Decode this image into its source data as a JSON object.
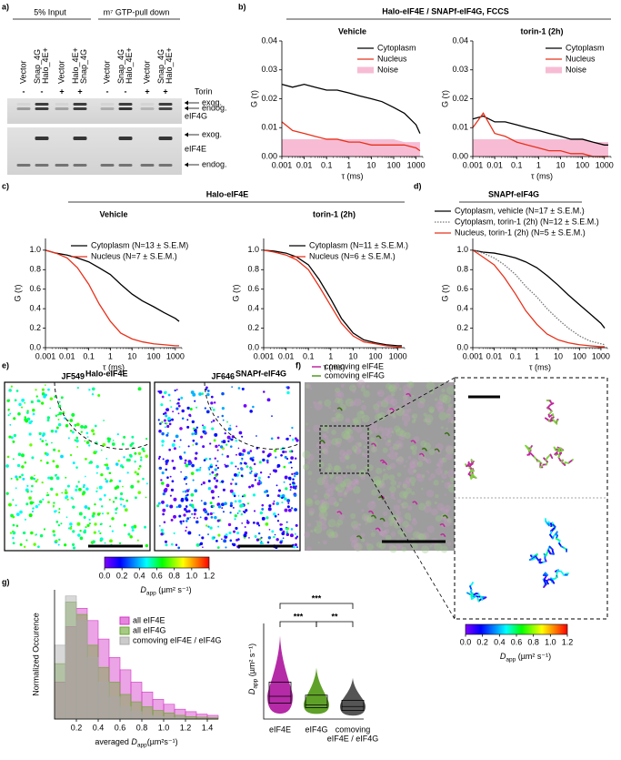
{
  "panel_labels": [
    "a)",
    "b)",
    "c)",
    "d)",
    "e)",
    "f)",
    "g)"
  ],
  "western_blot": {
    "groups": [
      "5% Input",
      "m⁷ GTP-pull down"
    ],
    "lanes": [
      [
        "Vector"
      ],
      [
        "Snap_4G",
        "Halo_4E+"
      ],
      [
        "Vector"
      ],
      [
        "Halo_4E+",
        "Snap_4G"
      ],
      [
        "Vector"
      ],
      [
        "Snap_4G",
        "Halo_4E+"
      ],
      [
        "Vector"
      ],
      [
        "Snap_4G",
        "Halo_4E+"
      ]
    ],
    "treatment_label": "Torin",
    "treatment": [
      "-",
      "-",
      "+",
      "+",
      "-",
      "-",
      "+",
      "+"
    ],
    "bands": [
      "exog.",
      "endog.",
      "eIF4G",
      "exog.",
      "eIF4E",
      "endog."
    ]
  },
  "panel_b": {
    "title": "Halo-eIF4E / SNAPf-eIF4G, FCCS",
    "charts": [
      {
        "type": "line",
        "title": "Vehicle",
        "log_x": true,
        "legend": "upper right",
        "x": [
          0.001,
          0.003,
          0.01,
          0.03,
          0.1,
          0.3,
          1,
          3,
          10,
          30,
          100,
          300,
          1000,
          1500
        ],
        "xlim": [
          0.001,
          2000
        ],
        "xticks": [
          0.001,
          0.01,
          0.1,
          1,
          10,
          100,
          1000
        ],
        "ylim": [
          0,
          0.04
        ],
        "yticks": [
          {
            "value": 0,
            "label": "0.00"
          },
          0.01,
          0.02,
          0.03,
          0.04
        ],
        "xlabel": "τ (ms)",
        "ylabel": "G (τ)",
        "series": [
          {
            "name": "Cytoplasm",
            "color": "#000000",
            "style": "line",
            "values": [
              0.025,
              0.024,
              0.025,
              0.024,
              0.023,
              0.023,
              0.022,
              0.021,
              0.02,
              0.019,
              0.017,
              0.015,
              0.011,
              0.008
            ]
          },
          {
            "name": "Nucleus",
            "color": "#e8311a",
            "style": "line",
            "values": [
              0.012,
              0.009,
              0.008,
              0.007,
              0.006,
              0.006,
              0.005,
              0.005,
              0.004,
              0.004,
              0.004,
              0.004,
              0.003,
              0.002
            ]
          },
          {
            "name": "Noise",
            "color": "#f4a6c6",
            "style": "area",
            "values": [
              0.006,
              0.006,
              0.006,
              0.006,
              0.006,
              0.006,
              0.006,
              0.006,
              0.006,
              0.006,
              0.006,
              0.005,
              0.005,
              0.005
            ]
          }
        ]
      },
      {
        "type": "line",
        "title": "torin-1 (2h)",
        "log_x": true,
        "legend": "upper right",
        "x": [
          0.001,
          0.003,
          0.01,
          0.03,
          0.1,
          0.3,
          1,
          3,
          10,
          30,
          100,
          300,
          1000,
          1500
        ],
        "xlim": [
          0.001,
          2000
        ],
        "xticks": [
          0.001,
          0.01,
          0.1,
          1,
          10,
          100,
          1000
        ],
        "ylim": [
          0,
          0.04
        ],
        "yticks": [
          {
            "value": 0,
            "label": "0.00"
          },
          0.01,
          0.02,
          0.03,
          0.04
        ],
        "xlabel": "τ (ms)",
        "ylabel": "G (τ)",
        "series": [
          {
            "name": "Cytoplasm",
            "color": "#000000",
            "style": "line",
            "values": [
              0.013,
              0.014,
              0.012,
              0.012,
              0.011,
              0.01,
              0.009,
              0.008,
              0.007,
              0.006,
              0.006,
              0.005,
              0.004,
              0.004
            ]
          },
          {
            "name": "Nucleus",
            "color": "#e8311a",
            "style": "line",
            "values": [
              0.01,
              0.015,
              0.008,
              0.007,
              0.005,
              0.004,
              0.003,
              0.002,
              0.002,
              0.001,
              0.001,
              0,
              0,
              0
            ]
          },
          {
            "name": "Noise",
            "color": "#f4a6c6",
            "style": "area",
            "values": [
              0.006,
              0.006,
              0.006,
              0.006,
              0.006,
              0.006,
              0.006,
              0.006,
              0.006,
              0.006,
              0.006,
              0.005,
              0.005,
              0.005
            ]
          }
        ]
      }
    ]
  },
  "panel_c": {
    "title": "Halo-eIF4E",
    "charts": [
      {
        "type": "line",
        "title": "Vehicle",
        "log_x": true,
        "legend": "upper left",
        "x": [
          0.001,
          0.003,
          0.01,
          0.03,
          0.1,
          0.3,
          1,
          3,
          10,
          30,
          100,
          300,
          1000,
          1500
        ],
        "xlim": [
          0.001,
          2000
        ],
        "xticks": [
          0.001,
          0.01,
          0.1,
          1,
          10,
          100,
          1000
        ],
        "ylim": [
          0,
          1.12
        ],
        "yticks": [
          {
            "value": 0,
            "label": "0.0"
          },
          0.2,
          0.4,
          0.6,
          0.8,
          {
            "value": 1,
            "label": "1.0"
          }
        ],
        "xlabel": "τ (ms)",
        "ylabel": "G (τ)",
        "series": [
          {
            "name": "Cytoplasm (N=13 ± S.E.M)",
            "color": "#000000",
            "style": "line",
            "values": [
              1.0,
              0.97,
              0.95,
              0.92,
              0.88,
              0.82,
              0.75,
              0.65,
              0.55,
              0.48,
              0.42,
              0.36,
              0.3,
              0.27
            ]
          },
          {
            "name": "Nucleus (N=7 ± S.E.M.)",
            "color": "#e8311a",
            "style": "line",
            "values": [
              1.0,
              0.97,
              0.92,
              0.82,
              0.65,
              0.45,
              0.27,
              0.15,
              0.09,
              0.06,
              0.04,
              0.03,
              0.02,
              0.02
            ]
          }
        ]
      },
      {
        "type": "line",
        "title": "torin-1 (2h)",
        "log_x": true,
        "legend": "upper left",
        "x": [
          0.001,
          0.003,
          0.01,
          0.03,
          0.1,
          0.3,
          1,
          3,
          10,
          30,
          100,
          300,
          1000,
          1500
        ],
        "xlim": [
          0.001,
          2000
        ],
        "xticks": [
          0.001,
          0.01,
          0.1,
          1,
          10,
          100,
          1000
        ],
        "ylim": [
          0,
          1.12
        ],
        "yticks": [
          {
            "value": 0,
            "label": "0.0"
          },
          0.2,
          0.4,
          0.6,
          0.8,
          {
            "value": 1,
            "label": "1.0"
          }
        ],
        "xlabel": "τ (ms)",
        "ylabel": "G (τ)",
        "series": [
          {
            "name": "Cytoplasm (N=11 ± S.E.M.)",
            "color": "#000000",
            "style": "line",
            "values": [
              1.0,
              0.99,
              0.97,
              0.93,
              0.85,
              0.7,
              0.5,
              0.3,
              0.15,
              0.08,
              0.05,
              0.03,
              0.02,
              0.02
            ]
          },
          {
            "name": "Nucleus (N=6 ± S.E.M.)",
            "color": "#e8311a",
            "style": "line",
            "values": [
              1.0,
              0.98,
              0.95,
              0.9,
              0.8,
              0.63,
              0.43,
              0.25,
              0.12,
              0.06,
              0.04,
              0.02,
              0.01,
              0.01
            ]
          }
        ]
      }
    ]
  },
  "panel_d": {
    "title": "SNAPf-eIF4G",
    "charts": [
      {
        "type": "line",
        "log_x": true,
        "legend": "above",
        "x": [
          0.001,
          0.003,
          0.01,
          0.03,
          0.1,
          0.3,
          1,
          3,
          10,
          30,
          100,
          300,
          1000,
          1500
        ],
        "xlim": [
          0.001,
          2000
        ],
        "xticks": [
          0.001,
          0.01,
          0.1,
          1,
          10,
          100,
          1000
        ],
        "ylim": [
          0,
          1.12
        ],
        "yticks": [
          {
            "value": 0,
            "label": "0.0"
          },
          0.2,
          0.4,
          0.6,
          0.8,
          {
            "value": 1,
            "label": "1.0"
          }
        ],
        "xlabel": "τ (ms)",
        "ylabel": "G (τ)",
        "series": [
          {
            "name": "Cytoplasm, vehicle (N=17 ± S.E.M.)",
            "color": "#000000",
            "style": "line",
            "values": [
              1.0,
              0.98,
              0.97,
              0.95,
              0.92,
              0.88,
              0.82,
              0.74,
              0.64,
              0.54,
              0.44,
              0.35,
              0.25,
              0.2
            ]
          },
          {
            "name": "Cytoplasm, torin-1 (2h) (N=12 ± S.E.M.)",
            "color": "#777777",
            "style": "dotted",
            "values": [
              1.0,
              0.97,
              0.92,
              0.85,
              0.75,
              0.63,
              0.52,
              0.4,
              0.29,
              0.2,
              0.12,
              0.07,
              0.04,
              0.03
            ]
          },
          {
            "name": "Nucleus, torin-1 (2h) (N=5 ± S.E.M.)",
            "color": "#e8311a",
            "style": "line",
            "values": [
              1.0,
              0.93,
              0.85,
              0.72,
              0.55,
              0.38,
              0.24,
              0.14,
              0.08,
              0.05,
              0.03,
              0.02,
              0.01,
              0.01
            ]
          }
        ]
      }
    ]
  },
  "panel_e": {
    "images": [
      {
        "dye": "JF549",
        "label": "Halo-eIF4E"
      },
      {
        "dye": "JF646",
        "label": "SNAPf-eIF4G"
      }
    ],
    "colorbar": {
      "lim": [
        0,
        1.2
      ],
      "ticks": [
        {
          "value": 0,
          "label": "0.0"
        },
        0.2,
        0.4,
        0.6,
        0.8,
        {
          "value": 1,
          "label": "1.0"
        },
        1.2
      ],
      "label": {
        "symbol": "D",
        "sub": "app",
        "unit": " (µm² s⁻¹)"
      }
    }
  },
  "panel_f": {
    "legend": [
      "comoving eIF4E",
      "comoving eIF4G"
    ],
    "legend_colors": [
      "#c0299f",
      "#4f9a1e"
    ],
    "colorbar": {
      "lim": [
        0,
        1.2
      ],
      "ticks": [
        {
          "value": 0,
          "label": "0.0"
        },
        0.2,
        0.4,
        0.6,
        0.8,
        {
          "value": 1,
          "label": "1.0"
        },
        1.2
      ],
      "label": {
        "symbol": "D",
        "sub": "app",
        "unit": " (µm² s⁻¹)"
      }
    }
  },
  "panel_g": {
    "histogram": {
      "type": "histogram",
      "legend": "upper right",
      "bins": [
        0,
        0.1,
        0.2,
        0.3,
        0.4,
        0.5,
        0.6,
        0.7,
        0.8,
        0.9,
        1.0,
        1.1,
        1.2,
        1.3,
        1.4,
        1.5
      ],
      "xlim": [
        0,
        1.5
      ],
      "xticks": [
        0.2,
        0.4,
        0.6,
        0.8,
        {
          "value": 1,
          "label": "1.0"
        },
        1.2,
        1.4
      ],
      "ylim": [
        0,
        1.05
      ],
      "ylabel": "Normalized Occurence",
      "xlabel": {
        "prefix": "averaged ",
        "symbol": "D",
        "sub": "app",
        "unit": "(µm²s⁻¹)"
      },
      "series": [
        {
          "name": "all eIF4E",
          "color": "#d336c6",
          "values": [
            0.3,
            0.75,
            0.9,
            0.8,
            0.65,
            0.5,
            0.4,
            0.3,
            0.22,
            0.16,
            0.12,
            0.08,
            0.06,
            0.04,
            0.03
          ]
        },
        {
          "name": "all eIF4G",
          "color": "#6aa632",
          "values": [
            0.45,
            0.95,
            0.85,
            0.6,
            0.42,
            0.3,
            0.2,
            0.14,
            0.1,
            0.07,
            0.05,
            0.03,
            0.02,
            0.015,
            0.01
          ]
        },
        {
          "name": "comoving eIF4E / eIF4G",
          "color": "#a8a8a8",
          "values": [
            0.6,
            1.0,
            0.8,
            0.5,
            0.3,
            0.18,
            0.1,
            0.06,
            0.03,
            0.02,
            0.01,
            0.01,
            0,
            0,
            0
          ]
        }
      ]
    },
    "violin": {
      "type": "violin",
      "categories": [
        [
          "eIF4E"
        ],
        [
          "eIF4G"
        ],
        [
          "comoving",
          "eIF4E / eIF4G"
        ]
      ],
      "colors": [
        "#b52aa6",
        "#5fa128",
        "#555555"
      ],
      "label_colors": [
        "#b52aa6",
        "#5fa128",
        "#8a8a8a"
      ],
      "q1": [
        0.28,
        0.2,
        0.15
      ],
      "median": [
        0.4,
        0.25,
        0.22
      ],
      "q3": [
        0.65,
        0.42,
        0.33
      ],
      "ylim": [
        0,
        1.6
      ],
      "ylabel": {
        "symbol": "D",
        "sub": "app",
        "unit": " (µm² s⁻¹)"
      },
      "significance": [
        "***",
        "***",
        "**"
      ]
    }
  }
}
